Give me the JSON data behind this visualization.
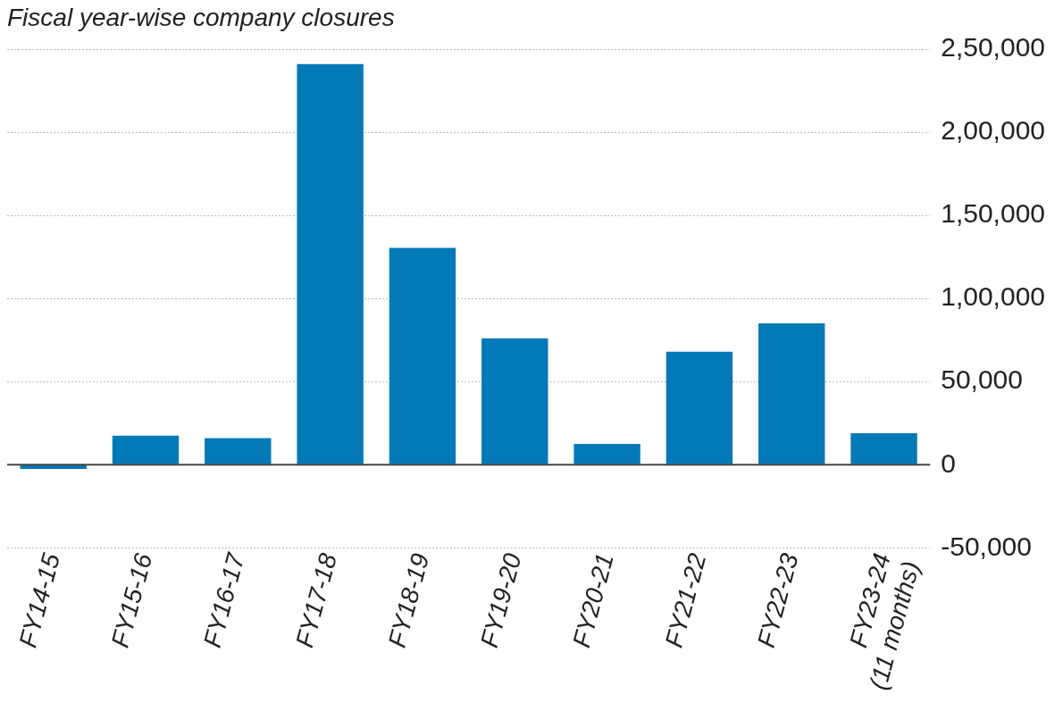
{
  "chart_data": {
    "type": "bar",
    "title": "Fiscal year-wise company closures",
    "categories": [
      "FY14-15",
      "FY15-16",
      "FY16-17",
      "FY17-18",
      "FY18-19",
      "FY19-20",
      "FY20-21",
      "FY21-22",
      "FY22-23",
      "FY23-24\n(11 months)"
    ],
    "values": [
      -2500,
      17500,
      16000,
      241000,
      130500,
      76000,
      12500,
      68000,
      85000,
      19000
    ],
    "color": "#0479b8",
    "ylim": [
      -50000,
      250000
    ],
    "ref_lines": [
      {
        "axis": "y",
        "value": 0,
        "color": "#444444",
        "line_style": "solid"
      }
    ],
    "yticks": [
      {
        "value": -50000,
        "label": "-50,000"
      },
      0,
      {
        "value": 50000,
        "label": "50,000"
      },
      {
        "value": 100000,
        "label": "1,00,000"
      },
      {
        "value": 150000,
        "label": "1,50,000"
      },
      {
        "value": 200000,
        "label": "2,00,000"
      },
      {
        "value": 250000,
        "label": "2,50,000"
      }
    ],
    "grid": "y"
  }
}
